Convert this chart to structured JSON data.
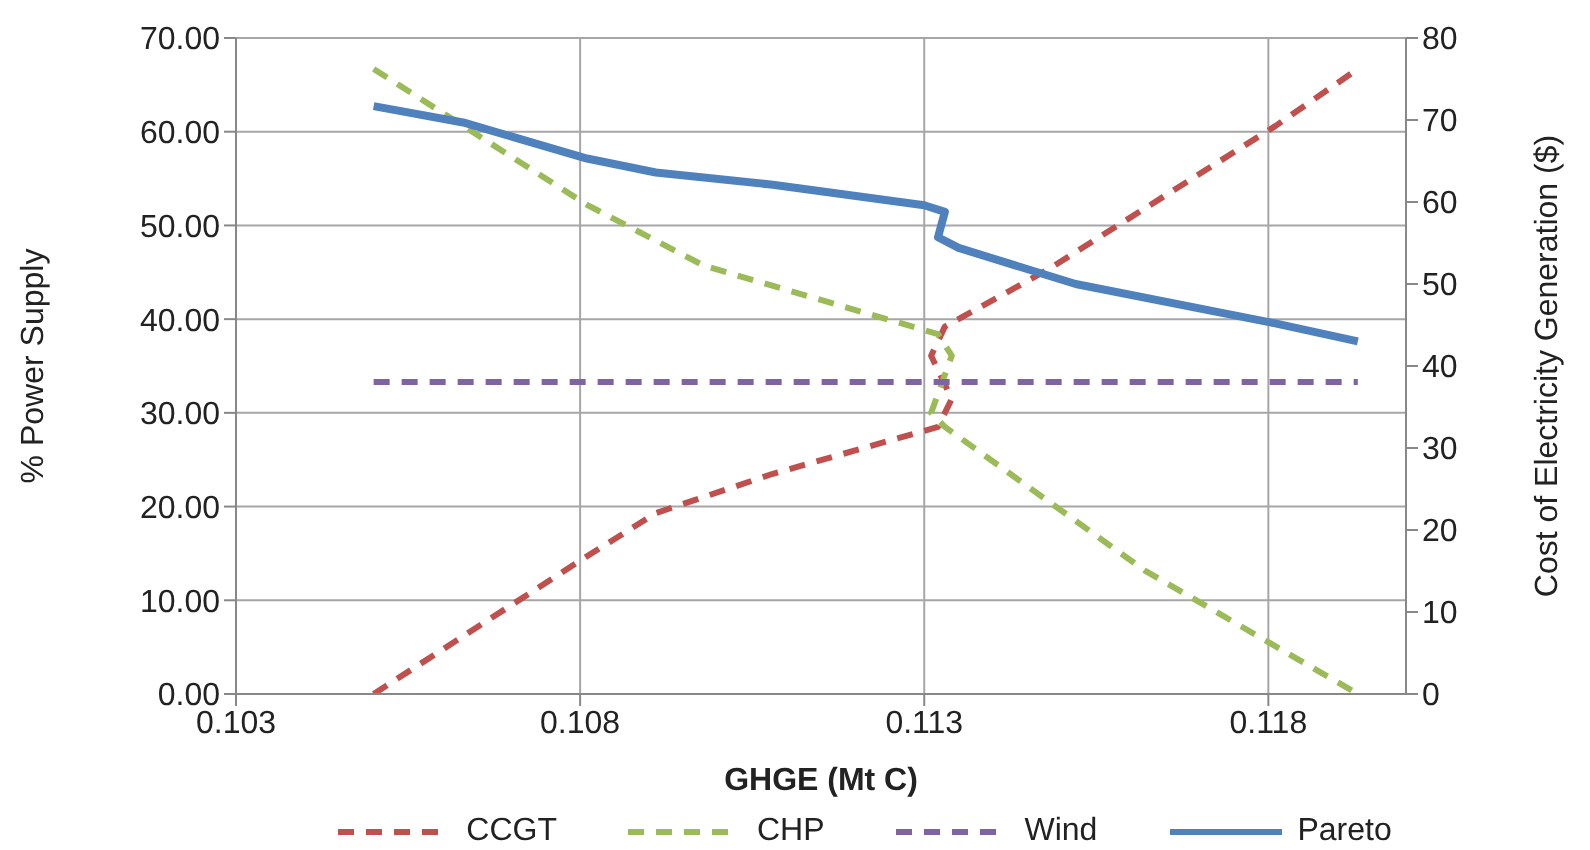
{
  "chart_data": {
    "type": "line",
    "xlabel": "GHGE (Mt C)",
    "ylabel": "% Power Supply",
    "y2label": "Cost of Electricity Generation ($)",
    "xlim": [
      0.103,
      0.12
    ],
    "xticks": [
      0.103,
      0.108,
      0.113,
      0.118
    ],
    "ylim": [
      0,
      70
    ],
    "yticks": [
      {
        "value": 0,
        "label": "0.00"
      },
      {
        "value": 10,
        "label": "10.00"
      },
      {
        "value": 20,
        "label": "20.00"
      },
      {
        "value": 30,
        "label": "30.00"
      },
      {
        "value": 40,
        "label": "40.00"
      },
      {
        "value": 50,
        "label": "50.00"
      },
      {
        "value": 60,
        "label": "60.00"
      },
      {
        "value": 70,
        "label": "70.00"
      }
    ],
    "y2lim": [
      0,
      80
    ],
    "y2ticks": [
      0,
      10,
      20,
      30,
      40,
      50,
      60,
      70,
      80
    ],
    "grid": true,
    "legend": "bottom",
    "marker": "none",
    "series": [
      {
        "name": "CCGT",
        "color": "#c0504d",
        "line_style": "dashed",
        "x": [
          0.105,
          0.1081,
          0.1091,
          0.1108,
          0.1132,
          0.1134,
          0.1131,
          0.1133,
          0.1148,
          0.1181,
          0.1193
        ],
        "values": [
          0,
          14.7,
          19.3,
          23.5,
          28.5,
          31.5,
          36.1,
          39.2,
          45.3,
          60.6,
          66.7
        ]
      },
      {
        "name": "CHP",
        "color": "#9bbb59",
        "line_style": "dashed",
        "x": [
          0.105,
          0.1081,
          0.1098,
          0.1132,
          0.1134,
          0.1131,
          0.1133,
          0.1162,
          0.1193
        ],
        "values": [
          66.7,
          52.2,
          45.7,
          38.4,
          36.1,
          30,
          28.5,
          13.2,
          0
        ]
      },
      {
        "name": "Wind",
        "color": "#8064a2",
        "line_style": "dashed",
        "x": [
          0.105,
          0.1193
        ],
        "values": [
          33.3,
          33.3
        ]
      },
      {
        "name": "Pareto",
        "color": "#4f81bd",
        "line_style": "solid",
        "axis": "y2",
        "x": [
          0.105,
          0.1063,
          0.1081,
          0.1091,
          0.1108,
          0.113,
          0.1133,
          0.1132,
          0.1135,
          0.1152,
          0.1181,
          0.1193
        ],
        "values": [
          71.7,
          69.7,
          65.3,
          63.6,
          62.1,
          59.6,
          58.8,
          55.7,
          54.4,
          50,
          45.2,
          43
        ]
      }
    ]
  }
}
